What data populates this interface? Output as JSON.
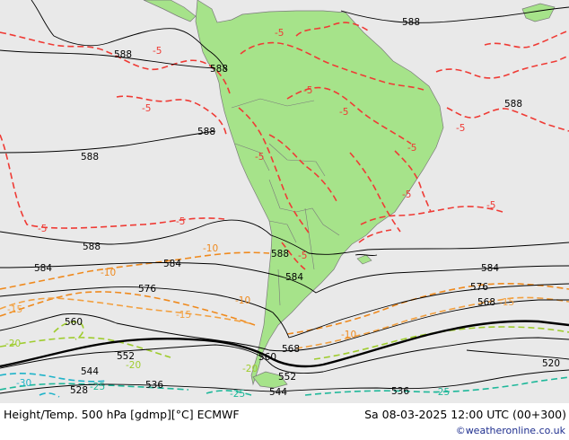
{
  "map": {
    "colors": {
      "ocean": "#e9e9e9",
      "land": "#a6e38a",
      "height": "#000000",
      "t_minus5": "#ef3b35",
      "t_minus10": "#ef8a1e",
      "t_minus15": "#f2a040",
      "t_minus20": "#9fcc2e",
      "t_minus25": "#1fb89a",
      "t_minus30": "#1fb3c9"
    },
    "labels": {
      "h588_a": "588",
      "h588_b": "588",
      "h588_c": "588",
      "h588_d": "588",
      "h588_e": "588",
      "h588_f": "588",
      "h588_g": "588",
      "h588_h": "588",
      "h584_a": "584",
      "h584_b": "584",
      "h584_c": "584",
      "h584_d": "584",
      "h576_a": "576",
      "h576_b": "576",
      "h568_a": "568",
      "h568_b": "568",
      "h560_a": "560",
      "h560_b": "560",
      "h552_a": "552",
      "h552_b": "552",
      "h544_a": "544",
      "h544_b": "544",
      "h536_a": "536",
      "h536_b": "536",
      "h528": "528",
      "h520": "520",
      "t5_a": "-5",
      "t5_b": "-5",
      "t5_c": "-5",
      "t5_d": "-5",
      "t5_e": "-5",
      "t5_f": "-5",
      "t5_g": "-5",
      "t5_h": "-5",
      "t5_i": "-5",
      "t5_j": "-5",
      "t5_k": "-5",
      "t5_l": "-5",
      "t5_m": "-5",
      "t10_a": "-10",
      "t10_b": "-10",
      "t10_c": "-10",
      "t10_d": "-10",
      "t15_a": "-15",
      "t15_b": "-15",
      "t15_c": "-15",
      "t20_a": "-20",
      "t20_b": "-20",
      "t20_c": "-20",
      "t25_a": "-25",
      "t25_b": "-25",
      "t25_c": "-25",
      "t30": "-30"
    }
  },
  "footer": {
    "left": "Height/Temp. 500 hPa [gdmp][°C] ECMWF",
    "right": "Sa 08-03-2025 12:00 UTC (00+300)",
    "credit": "©weatheronline.co.uk"
  }
}
